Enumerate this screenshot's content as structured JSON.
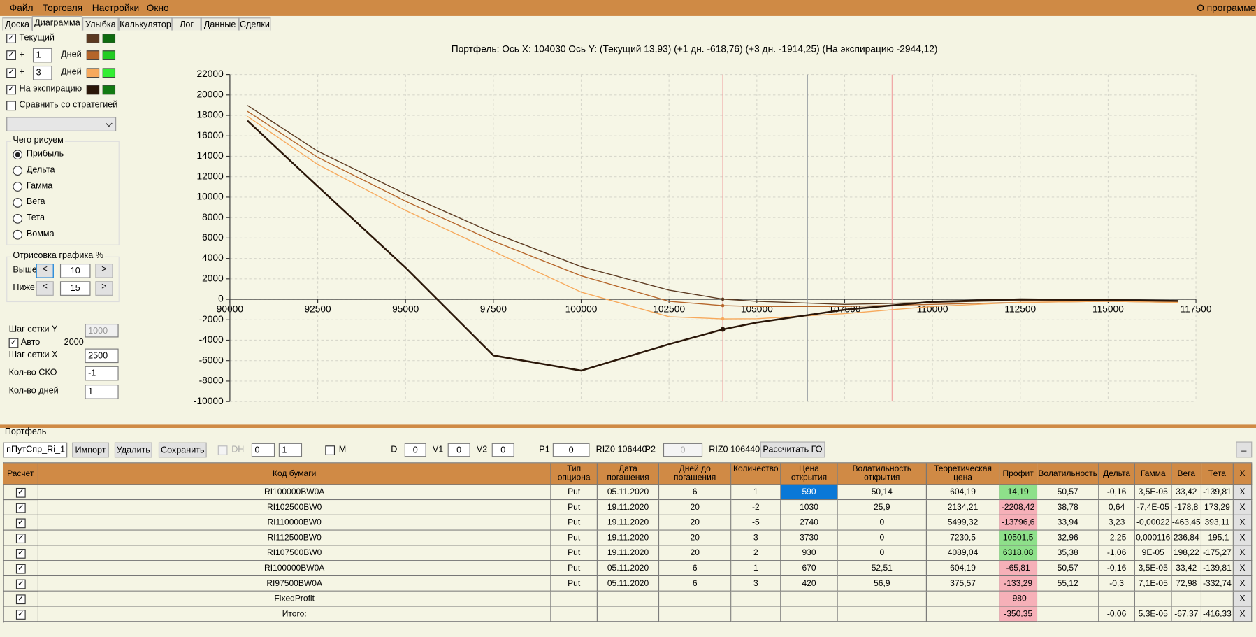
{
  "menu": {
    "items": [
      "Файл",
      "Торговля",
      "Настройки",
      "Окно"
    ],
    "about": "О программе"
  },
  "tabs": {
    "items": [
      "Доска",
      "Диаграмма",
      "Улыбка",
      "Калькулятор",
      "Лог",
      "Данные",
      "Сделки"
    ],
    "active": 1
  },
  "left": {
    "current": "Текущий",
    "plus": "+",
    "days1": "1",
    "days_label": "Дней",
    "days3": "3",
    "expiry": "На экспирацию",
    "compare": "Сравнить со стратегией",
    "draw_group": "Чего рисуем",
    "draw_options": [
      "Прибыль",
      "Дельта",
      "Гамма",
      "Вега",
      "Тета",
      "Вомма"
    ],
    "draw_selected": 0,
    "render_group": "Отрисовка графика %",
    "prev": "<",
    "next": ">",
    "above": "Выше",
    "above_val": "10",
    "below": "Ниже",
    "below_val": "15",
    "grid_y": "Шаг сетки Y",
    "grid_y_val": "1000",
    "auto": "Авто",
    "auto_val": "2000",
    "grid_x": "Шаг сетки X",
    "grid_x_val": "2500",
    "sko": "Кол-во СКО",
    "sko_val": "-1",
    "days_count": "Кол-во дней",
    "days_count_val": "1"
  },
  "chart_data": {
    "type": "line",
    "title": "Портфель: Ось X: 104030 Ось Y:  (Текущий 13,93)  (+1 дн. -618,76)  (+3 дн. -1914,25)  (На экспирацию -2944,12)",
    "x": [
      90500,
      92500,
      95000,
      97500,
      100000,
      102500,
      104030,
      105000,
      107500,
      110000,
      112500,
      115000,
      117000
    ],
    "series": [
      {
        "name": "Текущий",
        "color": "#5c3a21",
        "color2": "#0f6b0f",
        "values": [
          18970,
          14500,
          10300,
          6500,
          3200,
          900,
          13.93,
          -200,
          -500,
          -300,
          -100,
          -100,
          -200
        ]
      },
      {
        "name": "+1 дн.",
        "color": "#b5652a",
        "color2": "#22cc22",
        "values": [
          18400,
          13900,
          9600,
          5700,
          2300,
          -200,
          -618.76,
          -700,
          -700,
          -500,
          -300,
          -200,
          -300
        ]
      },
      {
        "name": "+3 дн.",
        "color": "#f7a95c",
        "color2": "#33ee33",
        "values": [
          17900,
          13200,
          8700,
          4700,
          700,
          -1700,
          -1914.25,
          -1900,
          -1400,
          -700,
          -300,
          -200,
          -300
        ]
      },
      {
        "name": "На экспирацию",
        "color": "#2a1608",
        "color2": "#127a12",
        "values": [
          17480,
          11050,
          3100,
          -5490,
          -6980,
          -4390,
          -2944.12,
          -2270,
          -1020,
          -240,
          0,
          -80,
          -160
        ]
      }
    ],
    "cursor_index": 6,
    "price_line": 106440,
    "sigma_lines": [
      104030,
      108850
    ],
    "xlim": [
      90000,
      117500
    ],
    "xticks": [
      90000,
      92500,
      95000,
      97500,
      100000,
      102500,
      105000,
      107500,
      110000,
      112500,
      115000,
      117500
    ],
    "ylim": [
      -10000,
      22000
    ],
    "yticks": [
      -10000,
      -8000,
      -6000,
      -4000,
      -2000,
      0,
      2000,
      4000,
      6000,
      8000,
      10000,
      12000,
      14000,
      16000,
      18000,
      20000,
      22000
    ],
    "grid": true
  },
  "portfolio": {
    "title": "Портфель",
    "name": "пПутСпр_Ri_1",
    "import": "Импорт",
    "delete": "Удалить",
    "save": "Сохранить",
    "dh": "DH",
    "spin1": "0",
    "spin2": "1",
    "m": "M",
    "d": "D",
    "d_val": "0",
    "v1": "V1",
    "v1_val": "0",
    "v2": "V2",
    "v2_val": "0",
    "p1": "P1",
    "p1_val": "0",
    "p1_ref": "RIZ0 106440",
    "p2": "P2",
    "p2_val": "0",
    "p2_ref": "RIZ0 106440",
    "calc": "Рассчитать ГО",
    "min": "_"
  },
  "table": {
    "headers": [
      "Расчет",
      "Код бумаги",
      "Тип опциона",
      "Дата погашения",
      "Дней до погашения",
      "Количество",
      "Цена открытия",
      "Волатильность открытия",
      "Теоретическая цена",
      "Профит",
      "Волатильность",
      "Дельта",
      "Гамма",
      "Вега",
      "Тета",
      "X"
    ],
    "delete": "X",
    "selected_cell": {
      "row": 0,
      "col": 5
    },
    "rows": [
      [
        "RI100000BW0A",
        "Put",
        "05.11.2020",
        "6",
        "1",
        "590",
        "50,14",
        "604,19",
        "14,19",
        "50,57",
        "-0,16",
        "3,5E-05",
        "33,42",
        "-139,81"
      ],
      [
        "RI102500BW0",
        "Put",
        "19.11.2020",
        "20",
        "-2",
        "1030",
        "25,9",
        "2134,21",
        "-2208,42",
        "38,78",
        "0,64",
        "-7,4E-05",
        "-178,8",
        "173,29"
      ],
      [
        "RI110000BW0",
        "Put",
        "19.11.2020",
        "20",
        "-5",
        "2740",
        "0",
        "5499,32",
        "-13796,6",
        "33,94",
        "3,23",
        "-0,00022",
        "-463,45",
        "393,11"
      ],
      [
        "RI112500BW0",
        "Put",
        "19.11.2020",
        "20",
        "3",
        "3730",
        "0",
        "7230,5",
        "10501,5",
        "32,96",
        "-2,25",
        "0,000116",
        "236,84",
        "-195,1"
      ],
      [
        "RI107500BW0",
        "Put",
        "19.11.2020",
        "20",
        "2",
        "930",
        "0",
        "4089,04",
        "6318,08",
        "35,38",
        "-1,06",
        "9E-05",
        "198,22",
        "-175,27"
      ],
      [
        "RI100000BW0A",
        "Put",
        "05.11.2020",
        "6",
        "1",
        "670",
        "52,51",
        "604,19",
        "-65,81",
        "50,57",
        "-0,16",
        "3,5E-05",
        "33,42",
        "-139,81"
      ],
      [
        "RI97500BW0A",
        "Put",
        "05.11.2020",
        "6",
        "3",
        "420",
        "56,9",
        "375,57",
        "-133,29",
        "55,12",
        "-0,3",
        "7,1E-05",
        "72,98",
        "-332,74"
      ],
      [
        "FixedProfit",
        null,
        null,
        null,
        null,
        null,
        null,
        null,
        "-980",
        null,
        null,
        null,
        null,
        null
      ],
      [
        "Итого:",
        null,
        null,
        null,
        null,
        null,
        null,
        null,
        "-350,35",
        null,
        "-0,06",
        "5,3E-05",
        "-67,37",
        "-416,33"
      ]
    ]
  }
}
